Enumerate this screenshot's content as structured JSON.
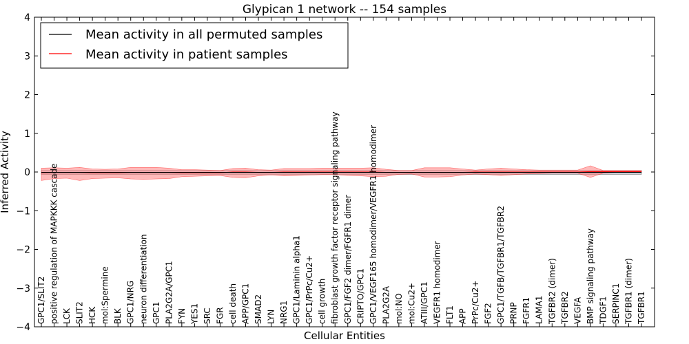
{
  "chart_data": {
    "type": "line",
    "title": "Glypican 1 network -- 154 samples",
    "xlabel": "Cellular Entities",
    "ylabel": "Inferred Activity",
    "ylim": [
      -4,
      4
    ],
    "yticks": [
      -4,
      -3,
      -2,
      -1,
      0,
      1,
      2,
      3,
      4
    ],
    "ytick_labels": [
      "−4",
      "−3",
      "−2",
      "−1",
      "0",
      "1",
      "2",
      "3",
      "4"
    ],
    "grid": false,
    "legend_position": "top-left",
    "categories": [
      "GPC1/SLIT2",
      "positive regulation of MAPKKK cascade",
      "LCK",
      "SLIT2",
      "HCK",
      "mol:Spermine",
      "BLK",
      "GPC1/NRG",
      "neuron differentiation",
      "GPC1",
      "PLA2G2A/GPC1",
      "FYN",
      "YES1",
      "SRC",
      "FGR",
      "cell death",
      "APP/GPC1",
      "SMAD2",
      "LYN",
      "NRG1",
      "GPC1/Laminin alpha1",
      "GPC1/PrPc/Cu2+",
      "cell growth",
      "fibroblast growth factor receptor signaling pathway",
      "GPC1/FGF2 dimer/FGFR1 dimer",
      "CRIPTO/GPC1",
      "GPC1/VEGF165 homodimer/VEGFR1 homodimer",
      "PLA2G2A",
      "mol:NO",
      "mol:Cu2+",
      "ATIII/GPC1",
      "VEGFR1 homodimer",
      "FLT1",
      "APP",
      "PrPc/Cu2+",
      "FGF2",
      "GPC1/TGFB/TGFBR1/TGFBR2",
      "PRNP",
      "FGFR1",
      "LAMA1",
      "TGFBR2 (dimer)",
      "TGFBR2",
      "VEGFA",
      "BMP signaling pathway",
      "TDGF1",
      "SERPINC1",
      "TGFBR1 (dimer)",
      "TGFBR1"
    ],
    "series": [
      {
        "name": "Mean activity in all permuted samples",
        "color": "#000000",
        "values": [
          -0.01,
          -0.01,
          -0.01,
          -0.01,
          -0.01,
          -0.01,
          -0.01,
          -0.01,
          -0.01,
          -0.01,
          -0.01,
          -0.01,
          -0.01,
          -0.01,
          -0.01,
          -0.01,
          -0.01,
          -0.01,
          -0.01,
          -0.01,
          -0.01,
          -0.01,
          -0.01,
          -0.01,
          -0.01,
          -0.01,
          -0.01,
          -0.01,
          -0.01,
          -0.01,
          -0.01,
          -0.01,
          -0.01,
          -0.01,
          -0.01,
          -0.01,
          -0.01,
          -0.01,
          -0.01,
          -0.01,
          -0.01,
          -0.01,
          -0.01,
          -0.01,
          -0.01,
          -0.01,
          -0.01,
          -0.01
        ],
        "lower": [
          -0.06,
          -0.06,
          -0.06,
          -0.06,
          -0.06,
          -0.06,
          -0.06,
          -0.06,
          -0.06,
          -0.06,
          -0.06,
          -0.06,
          -0.06,
          -0.06,
          -0.06,
          -0.06,
          -0.06,
          -0.06,
          -0.06,
          -0.06,
          -0.06,
          -0.06,
          -0.06,
          -0.06,
          -0.06,
          -0.06,
          -0.06,
          -0.06,
          -0.06,
          -0.06,
          -0.06,
          -0.06,
          -0.06,
          -0.06,
          -0.06,
          -0.06,
          -0.06,
          -0.06,
          -0.06,
          -0.06,
          -0.06,
          -0.06,
          -0.06,
          -0.06,
          -0.06,
          -0.06,
          -0.06,
          -0.06
        ],
        "upper": [
          0.04,
          0.04,
          0.04,
          0.04,
          0.04,
          0.04,
          0.04,
          0.04,
          0.04,
          0.04,
          0.04,
          0.04,
          0.04,
          0.04,
          0.04,
          0.04,
          0.04,
          0.04,
          0.04,
          0.04,
          0.04,
          0.04,
          0.04,
          0.04,
          0.04,
          0.04,
          0.04,
          0.04,
          0.04,
          0.04,
          0.04,
          0.04,
          0.04,
          0.04,
          0.04,
          0.04,
          0.04,
          0.04,
          0.04,
          0.04,
          0.04,
          0.04,
          0.04,
          0.04,
          0.04,
          0.04,
          0.04,
          0.04
        ]
      },
      {
        "name": "Mean activity in patient samples",
        "color": "#ff0000",
        "band_color": "#ff8080",
        "values": [
          -0.02,
          -0.01,
          -0.01,
          -0.01,
          -0.02,
          -0.02,
          -0.02,
          -0.01,
          -0.01,
          -0.01,
          -0.01,
          -0.02,
          -0.02,
          -0.02,
          -0.02,
          0.0,
          0.0,
          -0.01,
          -0.01,
          0.0,
          0.0,
          0.0,
          0.0,
          0.0,
          0.0,
          0.0,
          0.0,
          -0.01,
          -0.01,
          -0.01,
          -0.01,
          -0.01,
          -0.01,
          -0.01,
          0.0,
          0.0,
          0.0,
          0.0,
          0.0,
          0.0,
          0.0,
          0.0,
          0.0,
          0.01,
          0.01,
          0.01,
          0.01,
          0.01
        ],
        "lower": [
          -0.22,
          -0.17,
          -0.16,
          -0.22,
          -0.17,
          -0.16,
          -0.15,
          -0.18,
          -0.19,
          -0.18,
          -0.17,
          -0.12,
          -0.11,
          -0.1,
          -0.09,
          -0.14,
          -0.15,
          -0.1,
          -0.08,
          -0.1,
          -0.09,
          -0.08,
          -0.07,
          -0.07,
          -0.09,
          -0.1,
          -0.12,
          -0.11,
          -0.06,
          -0.05,
          -0.13,
          -0.13,
          -0.12,
          -0.08,
          -0.05,
          -0.07,
          -0.09,
          -0.07,
          -0.05,
          -0.04,
          -0.03,
          -0.03,
          -0.03,
          -0.14,
          -0.03,
          -0.01,
          -0.01,
          -0.01
        ],
        "upper": [
          0.1,
          0.11,
          0.1,
          0.12,
          0.08,
          0.07,
          0.08,
          0.12,
          0.12,
          0.12,
          0.1,
          0.06,
          0.06,
          0.05,
          0.04,
          0.09,
          0.1,
          0.06,
          0.05,
          0.09,
          0.09,
          0.09,
          0.1,
          0.1,
          0.1,
          0.1,
          0.11,
          0.07,
          0.04,
          0.04,
          0.11,
          0.11,
          0.11,
          0.08,
          0.05,
          0.08,
          0.1,
          0.08,
          0.06,
          0.05,
          0.05,
          0.05,
          0.05,
          0.16,
          0.04,
          0.04,
          0.04,
          0.04
        ]
      }
    ]
  }
}
